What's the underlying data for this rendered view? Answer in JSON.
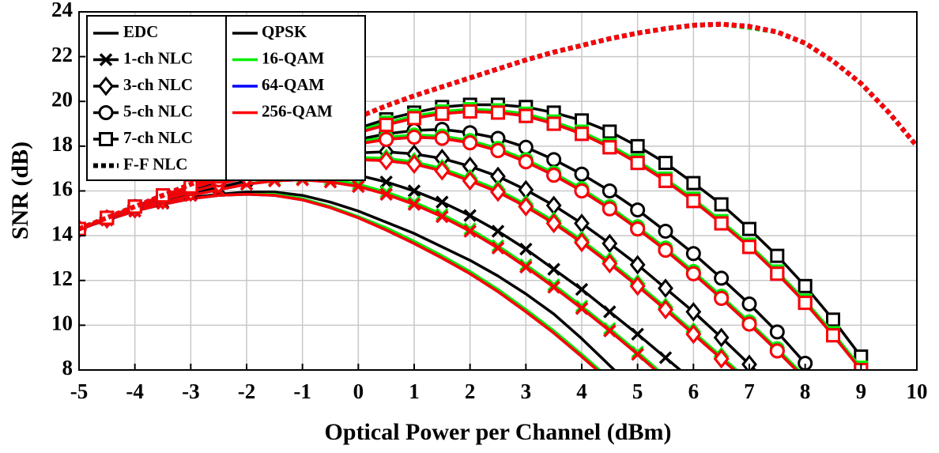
{
  "chart_data": {
    "type": "line",
    "xlabel": "Optical Power per Channel (dBm)",
    "ylabel": "SNR (dB)",
    "x": [
      -5,
      -4.5,
      -4,
      -3.5,
      -3,
      -2.5,
      -2,
      -1.5,
      -1,
      -0.5,
      0,
      0.5,
      1,
      1.5,
      2,
      2.5,
      3,
      3.5,
      4,
      4.5,
      5,
      5.5,
      6,
      6.5,
      7,
      7.5,
      8,
      8.5,
      9,
      9.5,
      10
    ],
    "xlim": [
      -5,
      10
    ],
    "ylim": [
      8,
      24
    ],
    "xticks": [
      -5,
      -4,
      -3,
      -2,
      -1,
      0,
      1,
      2,
      3,
      4,
      5,
      6,
      7,
      8,
      9,
      10
    ],
    "yticks": [
      8,
      10,
      12,
      14,
      16,
      18,
      20,
      22,
      24
    ],
    "grid": true,
    "legend": "upper left",
    "modulations": [
      {
        "name": "QPSK",
        "color": "#000000"
      },
      {
        "name": "16-QAM",
        "color": "#00ee00"
      },
      {
        "name": "64-QAM",
        "color": "#0000ff"
      },
      {
        "name": "256-QAM",
        "color": "#ff0000"
      }
    ],
    "styles": [
      {
        "name": "EDC",
        "marker": "none",
        "dash": "solid",
        "series": [
          [
            14.3,
            14.7,
            15.1,
            15.4,
            15.7,
            15.85,
            15.95,
            15.95,
            15.8,
            15.5,
            15.1,
            14.6,
            14.1,
            13.5,
            12.9,
            12.2,
            11.4,
            10.5,
            9.4,
            8.2,
            7.0,
            null,
            null,
            null,
            null,
            null,
            null,
            null,
            null,
            null,
            null
          ],
          [
            14.3,
            14.7,
            15.1,
            15.4,
            15.65,
            15.8,
            15.85,
            15.85,
            15.65,
            15.3,
            14.85,
            14.35,
            13.75,
            13.1,
            12.4,
            11.6,
            10.7,
            9.75,
            8.7,
            7.6,
            null,
            null,
            null,
            null,
            null,
            null,
            null,
            null,
            null,
            null,
            null
          ],
          [
            14.3,
            14.7,
            15.1,
            15.4,
            15.65,
            15.8,
            15.85,
            15.8,
            15.6,
            15.25,
            14.8,
            14.25,
            13.65,
            13.0,
            12.3,
            11.5,
            10.6,
            9.65,
            8.6,
            7.5,
            null,
            null,
            null,
            null,
            null,
            null,
            null,
            null,
            null,
            null,
            null
          ],
          [
            14.3,
            14.7,
            15.1,
            15.4,
            15.65,
            15.8,
            15.85,
            15.8,
            15.6,
            15.25,
            14.8,
            14.25,
            13.65,
            13.0,
            12.3,
            11.5,
            10.6,
            9.65,
            8.6,
            7.5,
            null,
            null,
            null,
            null,
            null,
            null,
            null,
            null,
            null,
            null,
            null
          ]
        ]
      },
      {
        "name": "1-ch NLC",
        "marker": "x",
        "dash": "solid",
        "series": [
          [
            14.3,
            14.7,
            15.1,
            15.5,
            15.85,
            16.15,
            16.45,
            16.65,
            16.8,
            16.8,
            16.7,
            16.4,
            16.0,
            15.5,
            14.9,
            14.2,
            13.4,
            12.5,
            11.6,
            10.6,
            9.6,
            8.55,
            7.5,
            null,
            null,
            null,
            null,
            null,
            null,
            null,
            null
          ],
          [
            14.3,
            14.7,
            15.1,
            15.45,
            15.8,
            16.05,
            16.3,
            16.5,
            16.55,
            16.5,
            16.3,
            15.95,
            15.5,
            14.95,
            14.3,
            13.55,
            12.7,
            11.8,
            10.85,
            9.85,
            8.8,
            7.7,
            null,
            null,
            null,
            null,
            null,
            null,
            null,
            null,
            null
          ],
          [
            14.3,
            14.7,
            15.1,
            15.45,
            15.8,
            16.05,
            16.3,
            16.45,
            16.5,
            16.4,
            16.2,
            15.85,
            15.4,
            14.85,
            14.2,
            13.45,
            12.6,
            11.7,
            10.75,
            9.75,
            8.7,
            7.6,
            null,
            null,
            null,
            null,
            null,
            null,
            null,
            null,
            null
          ],
          [
            14.3,
            14.7,
            15.1,
            15.45,
            15.8,
            16.05,
            16.3,
            16.45,
            16.5,
            16.4,
            16.2,
            15.85,
            15.4,
            14.85,
            14.2,
            13.45,
            12.6,
            11.7,
            10.75,
            9.75,
            8.7,
            7.6,
            null,
            null,
            null,
            null,
            null,
            null,
            null,
            null,
            null
          ]
        ]
      },
      {
        "name": "3-ch NLC",
        "marker": "diamond",
        "dash": "solid",
        "series": [
          [
            14.3,
            14.75,
            15.2,
            15.6,
            16.0,
            16.35,
            16.7,
            17.0,
            17.3,
            17.55,
            17.7,
            17.75,
            17.65,
            17.45,
            17.1,
            16.65,
            16.05,
            15.35,
            14.55,
            13.65,
            12.7,
            11.65,
            10.6,
            9.45,
            8.25,
            7.0,
            null,
            null,
            null,
            null,
            null
          ],
          [
            14.3,
            14.75,
            15.2,
            15.6,
            15.95,
            16.3,
            16.65,
            16.95,
            17.2,
            17.4,
            17.5,
            17.45,
            17.3,
            17.0,
            16.55,
            16.05,
            15.4,
            14.65,
            13.8,
            12.85,
            11.85,
            10.8,
            9.7,
            8.6,
            7.5,
            null,
            null,
            null,
            null,
            null,
            null
          ],
          [
            14.3,
            14.75,
            15.2,
            15.6,
            15.95,
            16.3,
            16.6,
            16.9,
            17.1,
            17.3,
            17.4,
            17.35,
            17.2,
            16.9,
            16.45,
            15.95,
            15.3,
            14.55,
            13.7,
            12.75,
            11.75,
            10.7,
            9.6,
            8.5,
            7.4,
            null,
            null,
            null,
            null,
            null,
            null
          ],
          [
            14.3,
            14.75,
            15.2,
            15.6,
            15.95,
            16.3,
            16.6,
            16.9,
            17.1,
            17.3,
            17.4,
            17.35,
            17.2,
            16.9,
            16.45,
            15.95,
            15.3,
            14.55,
            13.7,
            12.75,
            11.75,
            10.7,
            9.6,
            8.5,
            7.4,
            null,
            null,
            null,
            null,
            null,
            null
          ]
        ]
      },
      {
        "name": "5-ch NLC",
        "marker": "circle",
        "dash": "solid",
        "series": [
          [
            14.3,
            14.8,
            15.3,
            15.7,
            16.1,
            16.5,
            16.9,
            17.3,
            17.7,
            18.0,
            18.3,
            18.55,
            18.7,
            18.75,
            18.6,
            18.35,
            17.95,
            17.4,
            16.75,
            16.0,
            15.15,
            14.2,
            13.2,
            12.1,
            10.95,
            9.7,
            8.3,
            null,
            null,
            null,
            null
          ],
          [
            14.3,
            14.8,
            15.3,
            15.7,
            16.1,
            16.5,
            16.9,
            17.25,
            17.6,
            17.9,
            18.2,
            18.4,
            18.5,
            18.45,
            18.25,
            17.9,
            17.4,
            16.8,
            16.1,
            15.3,
            14.4,
            13.45,
            12.4,
            11.3,
            10.15,
            8.95,
            7.7,
            null,
            null,
            null,
            null
          ],
          [
            14.3,
            14.8,
            15.3,
            15.7,
            16.1,
            16.5,
            16.85,
            17.2,
            17.55,
            17.85,
            18.1,
            18.3,
            18.4,
            18.35,
            18.15,
            17.8,
            17.3,
            16.7,
            16.0,
            15.2,
            14.3,
            13.35,
            12.3,
            11.2,
            10.05,
            8.85,
            7.6,
            null,
            null,
            null,
            null
          ],
          [
            14.3,
            14.8,
            15.3,
            15.7,
            16.1,
            16.5,
            16.85,
            17.2,
            17.55,
            17.85,
            18.1,
            18.3,
            18.4,
            18.35,
            18.15,
            17.8,
            17.3,
            16.7,
            16.0,
            15.2,
            14.3,
            13.35,
            12.3,
            11.2,
            10.05,
            8.85,
            7.6,
            null,
            null,
            null,
            null
          ]
        ]
      },
      {
        "name": "7-ch NLC",
        "marker": "square",
        "dash": "solid",
        "series": [
          [
            14.3,
            14.8,
            15.3,
            15.8,
            16.2,
            16.7,
            17.1,
            17.6,
            18.0,
            18.4,
            18.8,
            19.2,
            19.5,
            19.75,
            19.85,
            19.85,
            19.75,
            19.5,
            19.15,
            18.65,
            18.0,
            17.25,
            16.35,
            15.4,
            14.3,
            13.1,
            11.75,
            10.25,
            8.6,
            null,
            null
          ],
          [
            14.3,
            14.8,
            15.3,
            15.8,
            16.2,
            16.7,
            17.05,
            17.55,
            17.95,
            18.3,
            18.7,
            19.05,
            19.35,
            19.55,
            19.65,
            19.6,
            19.45,
            19.1,
            18.65,
            18.05,
            17.35,
            16.55,
            15.65,
            14.65,
            13.6,
            12.4,
            11.1,
            9.65,
            8.1,
            null,
            null
          ],
          [
            14.3,
            14.8,
            15.3,
            15.8,
            16.2,
            16.65,
            17.0,
            17.5,
            17.9,
            18.25,
            18.6,
            18.95,
            19.25,
            19.45,
            19.55,
            19.5,
            19.35,
            19.0,
            18.55,
            17.95,
            17.25,
            16.45,
            15.55,
            14.55,
            13.5,
            12.3,
            11.0,
            9.55,
            8.0,
            null,
            null
          ],
          [
            14.3,
            14.8,
            15.3,
            15.8,
            16.2,
            16.65,
            17.0,
            17.5,
            17.9,
            18.25,
            18.6,
            18.95,
            19.25,
            19.45,
            19.55,
            19.5,
            19.35,
            19.0,
            18.55,
            17.95,
            17.25,
            16.45,
            15.55,
            14.55,
            13.5,
            12.3,
            11.0,
            9.55,
            8.0,
            null,
            null
          ]
        ]
      },
      {
        "name": "F-F NLC",
        "marker": "none",
        "dash": "dotted",
        "series": [
          [
            14.3,
            14.8,
            15.3,
            15.8,
            16.3,
            16.8,
            17.3,
            17.8,
            18.3,
            18.8,
            19.3,
            19.8,
            20.25,
            20.65,
            21.05,
            21.45,
            21.85,
            22.2,
            22.5,
            22.8,
            23.05,
            23.25,
            23.4,
            23.45,
            23.35,
            23.1,
            22.6,
            21.8,
            20.8,
            19.5,
            18.0
          ],
          [
            14.3,
            14.8,
            15.3,
            15.8,
            16.3,
            16.8,
            17.3,
            17.8,
            18.3,
            18.8,
            19.3,
            19.8,
            20.25,
            20.65,
            21.05,
            21.45,
            21.85,
            22.2,
            22.5,
            22.8,
            23.05,
            23.25,
            23.4,
            23.45,
            23.3,
            23.1,
            22.6,
            21.8,
            20.8,
            19.5,
            18.0
          ],
          [
            14.3,
            14.8,
            15.3,
            15.8,
            16.3,
            16.8,
            17.3,
            17.8,
            18.3,
            18.8,
            19.3,
            19.8,
            20.25,
            20.65,
            21.05,
            21.45,
            21.85,
            22.2,
            22.5,
            22.8,
            23.05,
            23.25,
            23.4,
            23.45,
            23.35,
            23.1,
            22.6,
            21.8,
            20.8,
            19.5,
            18.0
          ],
          [
            14.3,
            14.8,
            15.3,
            15.8,
            16.3,
            16.8,
            17.3,
            17.8,
            18.3,
            18.8,
            19.3,
            19.8,
            20.25,
            20.65,
            21.05,
            21.45,
            21.85,
            22.2,
            22.5,
            22.8,
            23.05,
            23.25,
            23.4,
            23.45,
            23.35,
            23.1,
            22.6,
            21.8,
            20.8,
            19.5,
            18.0
          ]
        ]
      }
    ]
  }
}
